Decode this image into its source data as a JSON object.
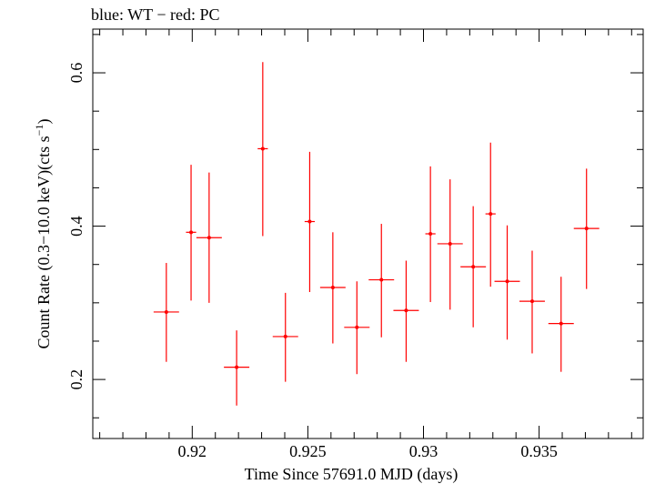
{
  "chart_data": {
    "type": "scatter",
    "title": "blue: WT − red: PC",
    "xlabel": "Time Since 57691.0 MJD (days)",
    "ylabel_main": "Count Rate (0.3−10.0 keV)(cts s",
    "ylabel_sup": "−1",
    "ylabel_end": ")",
    "xlim": [
      0.9157,
      0.9395
    ],
    "ylim": [
      0.123,
      0.657
    ],
    "xticks": [
      0.92,
      0.925,
      0.93,
      0.935
    ],
    "xtick_labels": [
      "0.92",
      "0.925",
      "0.93",
      "0.935"
    ],
    "yticks": [
      0.2,
      0.4,
      0.6
    ],
    "ytick_labels": [
      "0.2",
      "0.4",
      "0.6"
    ],
    "grid": false,
    "series": [
      {
        "name": "PC",
        "color": "#ff0000",
        "points": [
          {
            "x": 0.91888,
            "xerr": 0.00055,
            "y": 0.288,
            "ylo": 0.223,
            "yhi": 0.352
          },
          {
            "x": 0.91995,
            "xerr": 0.00022,
            "y": 0.392,
            "ylo": 0.303,
            "yhi": 0.48
          },
          {
            "x": 0.92073,
            "xerr": 0.00055,
            "y": 0.385,
            "ylo": 0.3,
            "yhi": 0.47
          },
          {
            "x": 0.92192,
            "xerr": 0.00055,
            "y": 0.216,
            "ylo": 0.166,
            "yhi": 0.264
          },
          {
            "x": 0.92305,
            "xerr": 0.00022,
            "y": 0.501,
            "ylo": 0.387,
            "yhi": 0.614
          },
          {
            "x": 0.92403,
            "xerr": 0.00055,
            "y": 0.256,
            "ylo": 0.197,
            "yhi": 0.313
          },
          {
            "x": 0.92508,
            "xerr": 0.00022,
            "y": 0.406,
            "ylo": 0.314,
            "yhi": 0.497
          },
          {
            "x": 0.92608,
            "xerr": 0.00055,
            "y": 0.32,
            "ylo": 0.247,
            "yhi": 0.392
          },
          {
            "x": 0.92712,
            "xerr": 0.00055,
            "y": 0.268,
            "ylo": 0.207,
            "yhi": 0.328
          },
          {
            "x": 0.92818,
            "xerr": 0.00055,
            "y": 0.33,
            "ylo": 0.255,
            "yhi": 0.403
          },
          {
            "x": 0.92925,
            "xerr": 0.00055,
            "y": 0.29,
            "ylo": 0.223,
            "yhi": 0.355
          },
          {
            "x": 0.9303,
            "xerr": 0.00022,
            "y": 0.39,
            "ylo": 0.301,
            "yhi": 0.478
          },
          {
            "x": 0.93115,
            "xerr": 0.00055,
            "y": 0.377,
            "ylo": 0.291,
            "yhi": 0.461
          },
          {
            "x": 0.93215,
            "xerr": 0.00055,
            "y": 0.347,
            "ylo": 0.268,
            "yhi": 0.426
          },
          {
            "x": 0.9329,
            "xerr": 0.00022,
            "y": 0.416,
            "ylo": 0.321,
            "yhi": 0.509
          },
          {
            "x": 0.93362,
            "xerr": 0.00055,
            "y": 0.328,
            "ylo": 0.252,
            "yhi": 0.401
          },
          {
            "x": 0.9347,
            "xerr": 0.00055,
            "y": 0.302,
            "ylo": 0.234,
            "yhi": 0.368
          },
          {
            "x": 0.93595,
            "xerr": 0.00055,
            "y": 0.273,
            "ylo": 0.21,
            "yhi": 0.334
          },
          {
            "x": 0.93705,
            "xerr": 0.00055,
            "y": 0.397,
            "ylo": 0.318,
            "yhi": 0.475
          }
        ]
      }
    ]
  }
}
